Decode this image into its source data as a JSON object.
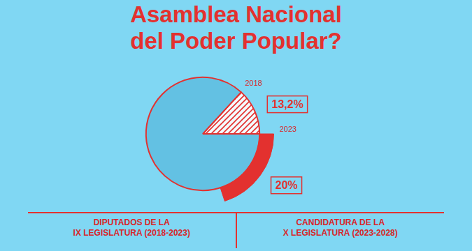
{
  "chart_data": {
    "type": "pie",
    "title": "Asamblea Nacional\ndel Poder Popular?",
    "series": [
      {
        "name": "2018",
        "color": "#e3312f",
        "values": [
          13.2
        ],
        "value_labels": [
          "13,2%"
        ]
      },
      {
        "name": "2023",
        "color": "#e3312f",
        "values": [
          20
        ],
        "value_labels": [
          "20%"
        ]
      }
    ],
    "annotations": [
      "DIPUTADOS DE LA\nIX LEGISLATURA (2018-2023)",
      "CANDIDATURA DE LA\nX LEGISLATURA (2023-2028)"
    ],
    "data_labels": true,
    "legend": false
  }
}
